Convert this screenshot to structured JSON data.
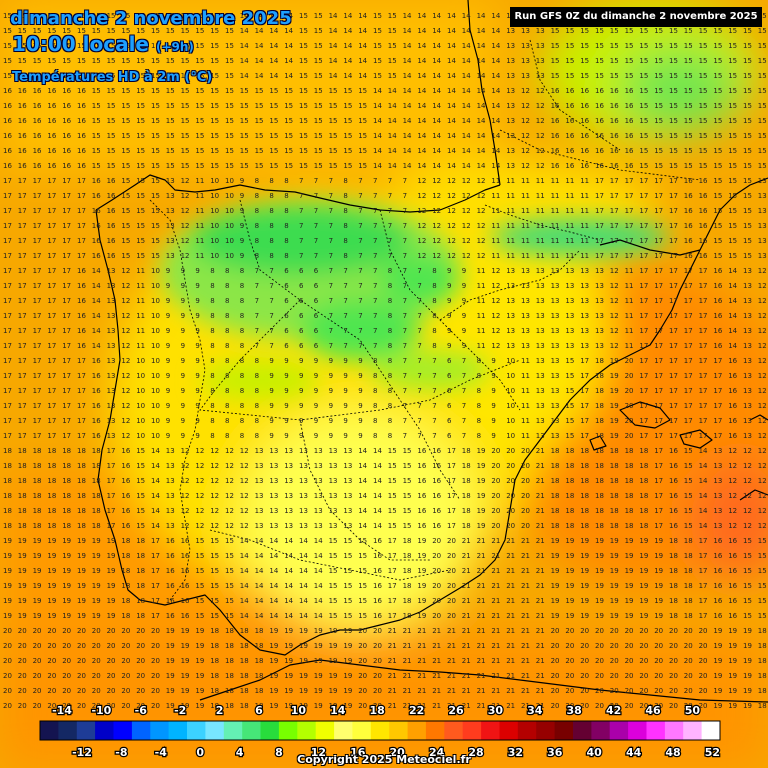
{
  "header": {
    "date": "dimanche 2 novembre 2025",
    "time": "10:00 locale",
    "offset": "(+9h)",
    "variable": "Températures HD à 2m (°C)"
  },
  "run_info": "Run GFS 0Z du dimanche 2 novembre 2025",
  "copyright": "Copyright 2025 Meteociel.fr",
  "legend": {
    "upper_labels": [
      "-14",
      "-10",
      "-6",
      "-2",
      "2",
      "6",
      "10",
      "14",
      "18",
      "22",
      "26",
      "30",
      "34",
      "38",
      "42",
      "46",
      "50"
    ],
    "lower_labels": [
      "-12",
      "-8",
      "-4",
      "0",
      "4",
      "8",
      "12",
      "16",
      "20",
      "24",
      "28",
      "32",
      "36",
      "40",
      "44",
      "48",
      "52"
    ],
    "colors": [
      "#141450",
      "#142864",
      "#1e3c96",
      "#0000c8",
      "#0000ff",
      "#0064ff",
      "#0096ff",
      "#00b4ff",
      "#3cd2ff",
      "#78e6ff",
      "#64f0b4",
      "#46e678",
      "#28dc3c",
      "#78ff00",
      "#b4ff00",
      "#f0ff00",
      "#ffff6e",
      "#ffff3c",
      "#ffe600",
      "#ffc800",
      "#ffa000",
      "#ff7800",
      "#ff5a1e",
      "#ff3c1e",
      "#f01414",
      "#dc0000",
      "#b40000",
      "#960000",
      "#780000",
      "#640032",
      "#820064",
      "#aa00aa",
      "#dc00dc",
      "#ff32ff",
      "#ff78ff",
      "#ffb4ff",
      "#ffffff"
    ]
  },
  "temperature_grid_sample": {
    "rows": [
      "15 15 15 15 15 15 15 15 15 15 15 15 15 15 15 15 14 14 14 14 15 15 14 14 14 15 15 14 14 14 14 14 14 14 13 13 13",
      "16 16 16 16 16 16 15 15 15 15 15 15 15 15 15 15 15 15 15 15 15 15 15 15 15 14 14 14 14 14 14 14 14 14 13 12 12",
      "17 17 17 17 17 17 16 16 15 15 15 13 12 11 10 10 9 8 8 8 7 7 7 8 7 7 7 7 12 12 12 12 12 11 11 11 11 11 11 11",
      "17 17 17 17 17 16 14 13 12 11 10 9 9 9 8 8 8 7 7 6 6 6 7 7 7 7 8 7 7 8 9 9 11 12 13 13 13 13 13 13 13 12 11",
      "17 17 17 17 17 17 16 13 12 10 10 9 9 9 8 8 8 8 9 9 9 9 9 9 9 8 8 7 7 7 6 7 8 9 10 11 13 13 15 17 18 19 20",
      "18 18 18 18 18 18 18 17 16 15 14 13 12 12 12 12 12 13 13 13 13 13 13 13 14 14 15 15 16 16 17 18 19 20 20 20 21",
      "19 19 19 19 19 19 19 19 18 18 17 16 16 15 15 15 14 14 14 14 14 14 15 15 15 16 17 18 19 20 20 21 21 21 21 21 21",
      "20 20 20 20 20 20 20 20 20 20 20 19 19 19 18 18 18 18 19 19 19 19 19 19 20 20 21 21 21 21 21 21 21 21 21 21 21"
    ]
  }
}
